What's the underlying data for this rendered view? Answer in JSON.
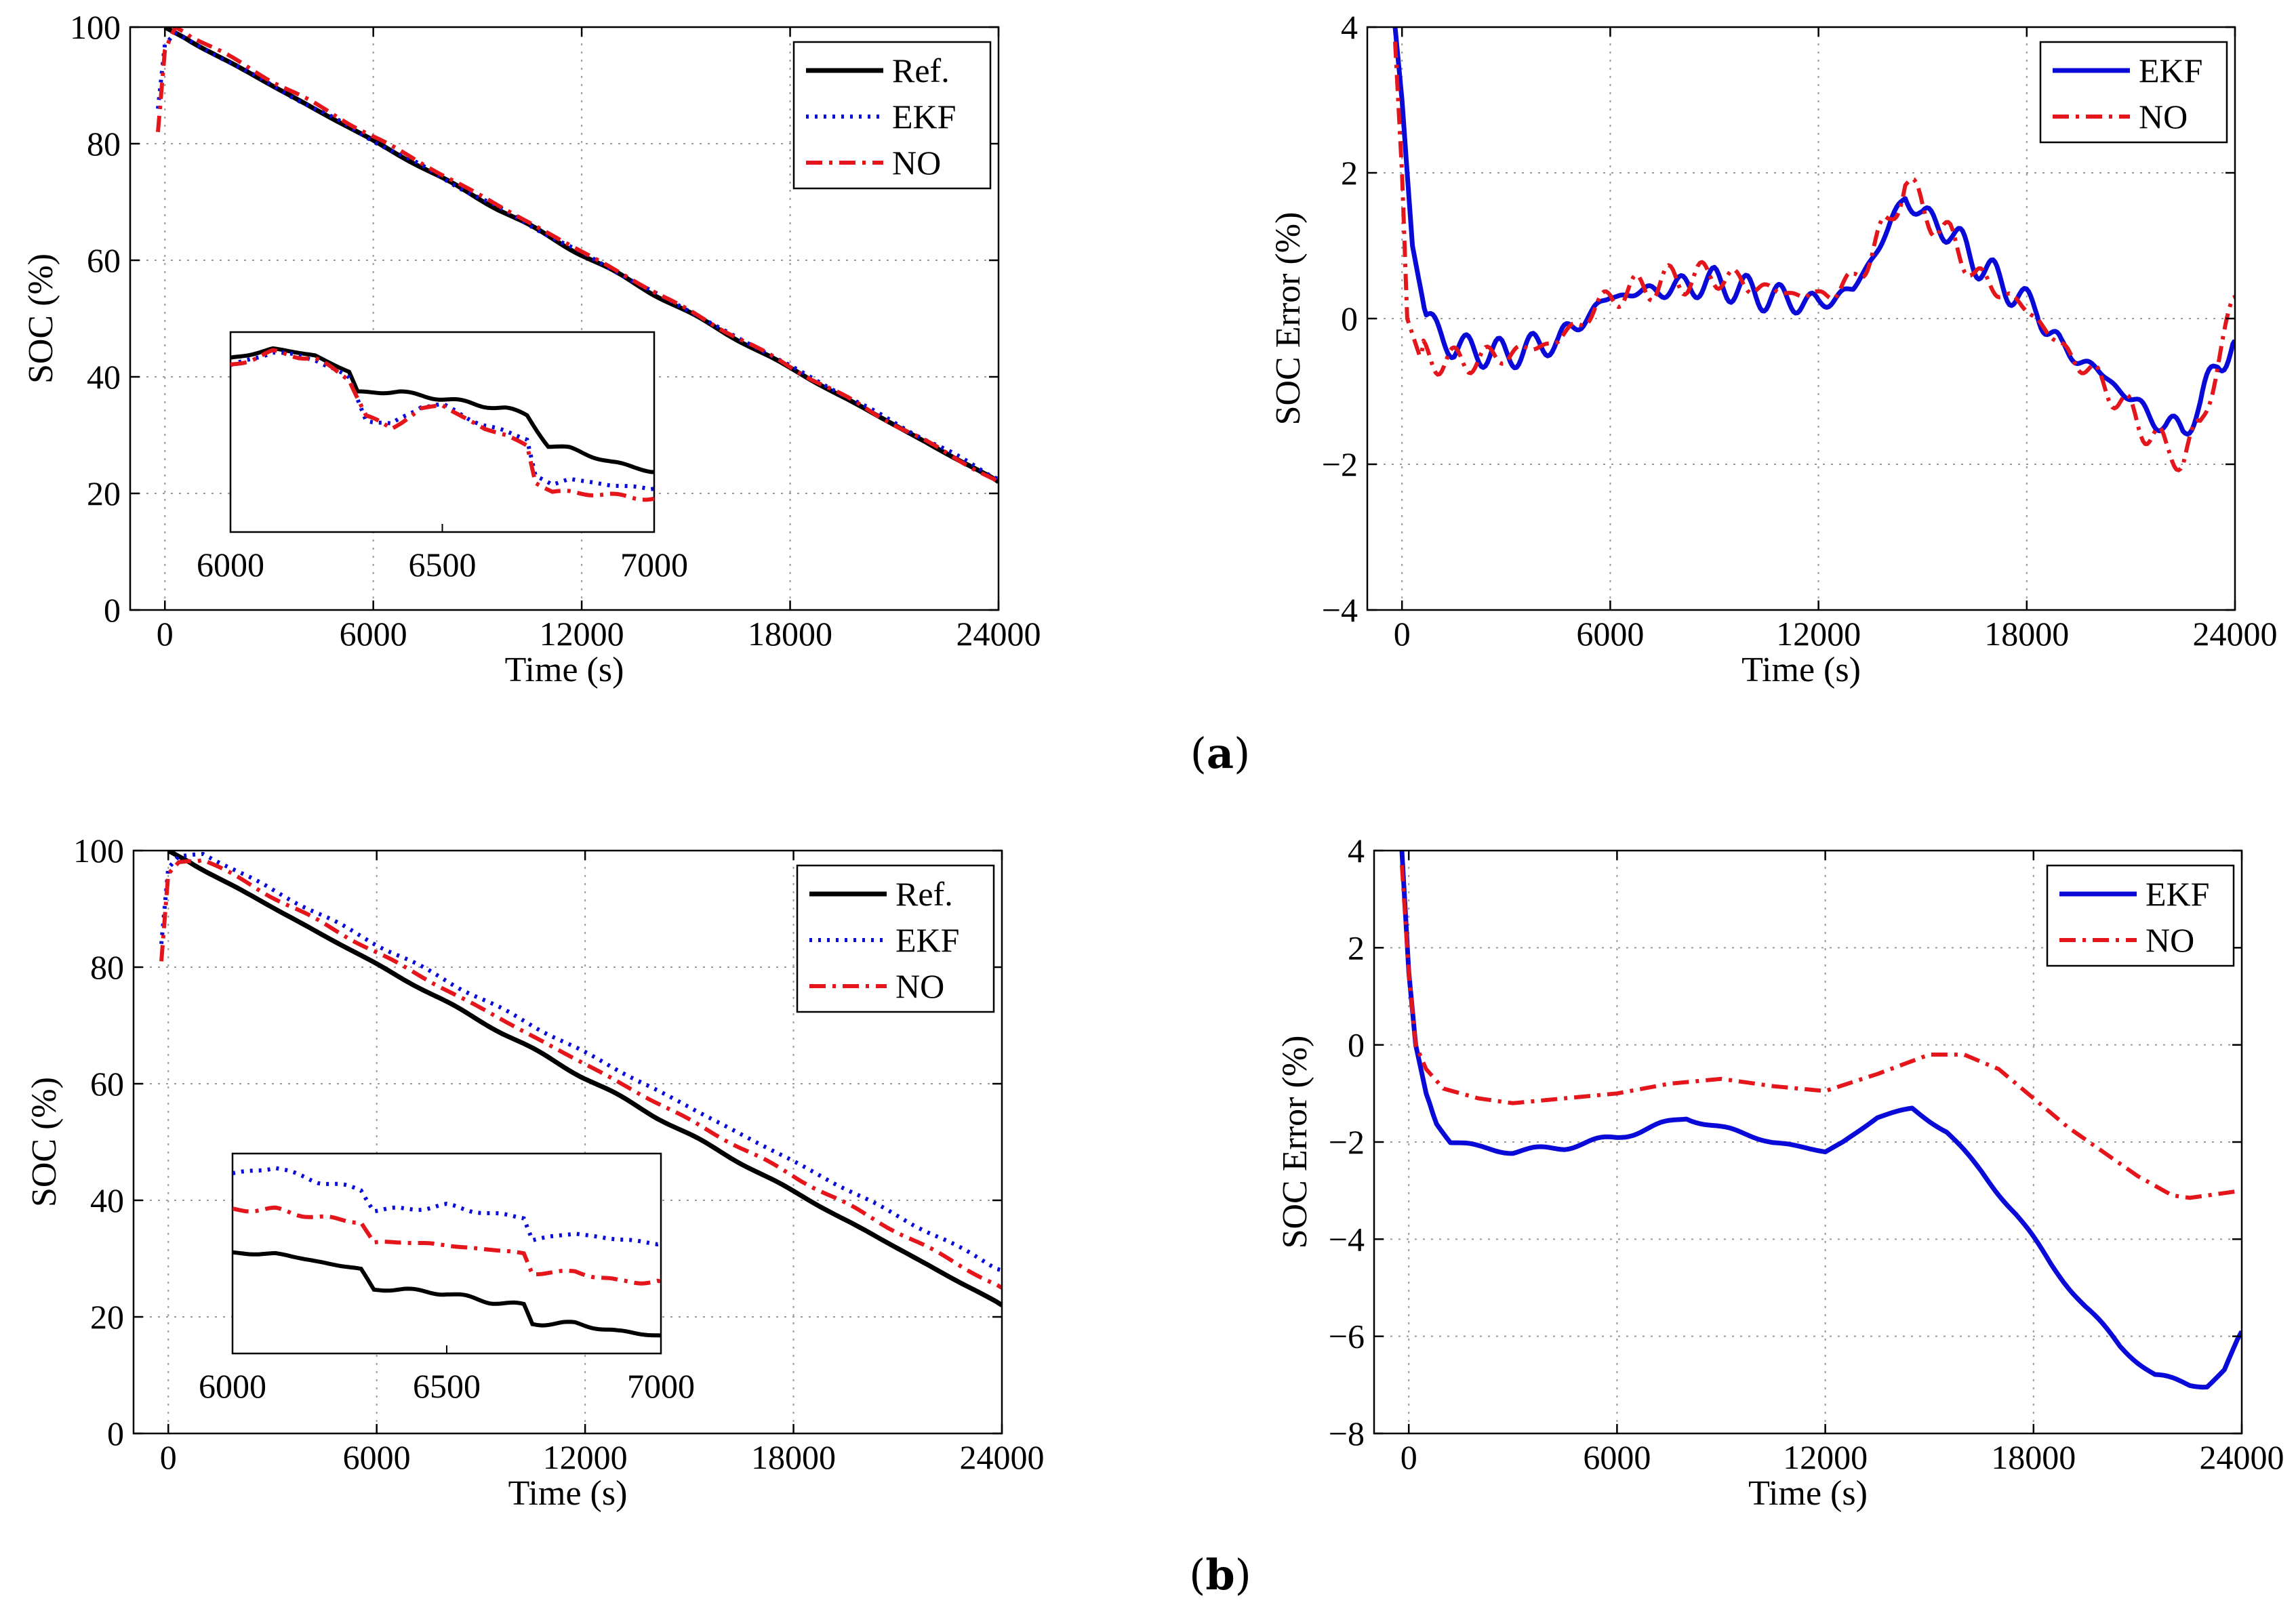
{
  "figure": {
    "panel_labels": [
      {
        "text_open": "(",
        "text_bold": "a",
        "text_close": ")"
      },
      {
        "text_open": "(",
        "text_bold": "b",
        "text_close": ")"
      }
    ]
  },
  "colors": {
    "ref": "#000000",
    "ekf": "#0a0ad8",
    "no": "#e4151b"
  },
  "chart_data": [
    {
      "id": "a-soc",
      "type": "line",
      "xlabel": "Time (s)",
      "ylabel": "SOC (%)",
      "xlim": [
        -1000,
        24000
      ],
      "ylim": [
        0,
        100
      ],
      "xticks": [
        0,
        6000,
        12000,
        18000,
        24000
      ],
      "yticks": [
        0,
        20,
        40,
        60,
        80,
        100
      ],
      "grid": true,
      "legend": {
        "position": "top-right",
        "entries": [
          "Ref.",
          "EKF",
          "NO"
        ]
      },
      "series": [
        {
          "name": "Ref.",
          "style": "solid",
          "color": "#000000",
          "x": [
            0,
            24000
          ],
          "y": [
            100,
            22
          ]
        },
        {
          "name": "EKF",
          "style": "dotted",
          "color": "#0a0ad8",
          "x": [
            -200,
            0,
            300,
            24000
          ],
          "y": [
            86,
            97,
            99,
            22.5
          ]
        },
        {
          "name": "NO",
          "style": "dashdot",
          "color": "#e4151b",
          "x": [
            -200,
            0,
            300,
            24000
          ],
          "y": [
            82,
            96,
            100,
            22
          ]
        }
      ],
      "inset": {
        "xticks": [
          6000,
          6500,
          7000
        ],
        "xlim": [
          6000,
          7000
        ],
        "ylim": [
          80,
          83
        ],
        "series": [
          {
            "name": "Ref.",
            "x": [
              6000,
              6100,
              6200,
              6280,
              6300,
              6400,
              6500,
              6600,
              6650,
              6700,
              6750,
              6800,
              6900,
              7000
            ],
            "y": [
              82.6,
              82.75,
              82.65,
              82.4,
              82.1,
              82.1,
              82.0,
              81.9,
              81.85,
              81.75,
              81.3,
              81.25,
              81.05,
              80.9
            ]
          },
          {
            "name": "EKF",
            "x": [
              6000,
              6100,
              6200,
              6280,
              6320,
              6380,
              6450,
              6500,
              6600,
              6650,
              6700,
              6720,
              6760,
              6800,
              6900,
              7000
            ],
            "y": [
              82.5,
              82.7,
              82.6,
              82.3,
              81.7,
              81.6,
              81.9,
              81.9,
              81.6,
              81.5,
              81.4,
              80.85,
              80.7,
              80.8,
              80.7,
              80.65
            ]
          },
          {
            "name": "NO",
            "x": [
              6000,
              6100,
              6200,
              6280,
              6320,
              6380,
              6450,
              6500,
              6600,
              6650,
              6700,
              6720,
              6760,
              6800,
              6900,
              7000
            ],
            "y": [
              82.5,
              82.7,
              82.6,
              82.3,
              81.75,
              81.55,
              81.85,
              81.9,
              81.55,
              81.45,
              81.3,
              80.75,
              80.6,
              80.6,
              80.55,
              80.5
            ]
          }
        ]
      }
    },
    {
      "id": "a-err",
      "type": "line",
      "xlabel": "Time (s)",
      "ylabel": "SOC Error (%)",
      "xlim": [
        -1000,
        24000
      ],
      "ylim": [
        -4,
        4
      ],
      "xticks": [
        0,
        6000,
        12000,
        18000,
        24000
      ],
      "yticks": [
        -4,
        -2,
        0,
        2,
        4
      ],
      "grid": true,
      "legend": {
        "position": "top-right",
        "entries": [
          "EKF",
          "NO"
        ]
      },
      "series": [
        {
          "name": "EKF",
          "style": "solid",
          "color": "#0a0ad8",
          "x": [
            -200,
            0,
            300,
            700,
            1500,
            3000,
            4500,
            6000,
            7500,
            9000,
            10500,
            12000,
            13000,
            14000,
            14500,
            15000,
            15800,
            16500,
            17500,
            18300,
            19000,
            20000,
            21000,
            22000,
            22500,
            23000,
            23500,
            24000
          ],
          "y": [
            4.0,
            3.0,
            1.0,
            0.0,
            -0.4,
            -0.5,
            -0.3,
            0.3,
            0.4,
            0.5,
            0.3,
            0.2,
            0.4,
            1.2,
            1.7,
            1.4,
            1.2,
            0.8,
            0.4,
            0.1,
            -0.4,
            -0.7,
            -1.1,
            -1.5,
            -1.5,
            -1.2,
            -0.6,
            -0.3
          ]
        },
        {
          "name": "NO",
          "style": "dashdot",
          "color": "#e4151b",
          "x": [
            -200,
            0,
            150,
            500,
            1500,
            3000,
            4500,
            6000,
            7500,
            9000,
            10500,
            12000,
            13000,
            14000,
            14500,
            15000,
            15800,
            16500,
            17500,
            18300,
            19000,
            20000,
            21000,
            22000,
            22500,
            23000,
            23500,
            24000
          ],
          "y": [
            3.8,
            2.0,
            0.0,
            -0.5,
            -0.6,
            -0.5,
            -0.3,
            0.3,
            0.5,
            0.6,
            0.4,
            0.3,
            0.5,
            1.3,
            1.9,
            1.5,
            1.1,
            0.6,
            0.3,
            0.0,
            -0.4,
            -0.8,
            -1.3,
            -1.8,
            -1.9,
            -1.5,
            -0.6,
            0.3
          ]
        }
      ]
    },
    {
      "id": "b-soc",
      "type": "line",
      "xlabel": "Time (s)",
      "ylabel": "SOC (%)",
      "xlim": [
        -1000,
        24000
      ],
      "ylim": [
        0,
        100
      ],
      "xticks": [
        0,
        6000,
        12000,
        18000,
        24000
      ],
      "yticks": [
        0,
        20,
        40,
        60,
        80,
        100
      ],
      "grid": true,
      "legend": {
        "position": "top-right",
        "entries": [
          "Ref.",
          "EKF",
          "NO"
        ]
      },
      "series": [
        {
          "name": "Ref.",
          "style": "solid",
          "color": "#000000",
          "x": [
            0,
            24000
          ],
          "y": [
            100,
            22
          ]
        },
        {
          "name": "EKF",
          "style": "dotted",
          "color": "#0a0ad8",
          "x": [
            -200,
            0,
            300,
            1000,
            24000
          ],
          "y": [
            84,
            97,
            99,
            99.5,
            28
          ]
        },
        {
          "name": "NO",
          "style": "dashdot",
          "color": "#e4151b",
          "x": [
            -200,
            0,
            300,
            1000,
            24000
          ],
          "y": [
            81,
            96,
            98,
            98.5,
            25
          ]
        }
      ],
      "inset": {
        "xticks": [
          6000,
          6500,
          7000
        ],
        "xlim": [
          6000,
          7000
        ],
        "ylim": [
          79.5,
          84.5
        ],
        "series": [
          {
            "name": "Ref.",
            "x": [
              6000,
              6100,
              6200,
              6300,
              6330,
              6400,
              6500,
              6600,
              6680,
              6700,
              6800,
              6900,
              7000
            ],
            "y": [
              82.0,
              82.0,
              81.8,
              81.6,
              81.1,
              81.1,
              81.0,
              80.8,
              80.7,
              80.25,
              80.25,
              80.05,
              79.95
            ]
          },
          {
            "name": "EKF",
            "x": [
              6000,
              6100,
              6200,
              6300,
              6330,
              6400,
              6500,
              6600,
              6680,
              6700,
              6800,
              6900,
              7000
            ],
            "y": [
              84.0,
              84.15,
              83.8,
              83.6,
              83.1,
              83.1,
              83.2,
              83.0,
              82.9,
              82.35,
              82.5,
              82.35,
              82.25
            ]
          },
          {
            "name": "NO",
            "x": [
              6000,
              6100,
              6200,
              6300,
              6330,
              6400,
              6500,
              6600,
              6680,
              6700,
              6800,
              6900,
              7000
            ],
            "y": [
              83.1,
              83.1,
              82.9,
              82.8,
              82.25,
              82.3,
              82.2,
              82.1,
              82.0,
              81.5,
              81.55,
              81.3,
              81.3
            ]
          }
        ]
      }
    },
    {
      "id": "b-err",
      "type": "line",
      "xlabel": "Time (s)",
      "ylabel": "SOC Error (%)",
      "xlim": [
        -1000,
        24000
      ],
      "ylim": [
        -8,
        4
      ],
      "xticks": [
        0,
        6000,
        12000,
        18000,
        24000
      ],
      "yticks": [
        -8,
        -6,
        -4,
        -2,
        0,
        2,
        4
      ],
      "grid": true,
      "legend": {
        "position": "top-right",
        "entries": [
          "EKF",
          "NO"
        ]
      },
      "series": [
        {
          "name": "EKF",
          "style": "solid",
          "color": "#0a0ad8",
          "x": [
            -200,
            0,
            200,
            500,
            800,
            1200,
            2000,
            3000,
            4500,
            6000,
            7500,
            8000,
            9000,
            10500,
            12000,
            12500,
            13500,
            14500,
            15500,
            16500,
            17500,
            18500,
            19500,
            20500,
            21500,
            22500,
            23000,
            23500,
            24000
          ],
          "y": [
            4.0,
            1.5,
            0.0,
            -1.0,
            -1.6,
            -2.0,
            -2.1,
            -2.2,
            -2.1,
            -1.9,
            -1.6,
            -1.5,
            -1.7,
            -2.0,
            -2.2,
            -2.0,
            -1.5,
            -1.3,
            -1.8,
            -2.6,
            -3.5,
            -4.5,
            -5.4,
            -6.2,
            -6.8,
            -7.0,
            -7.0,
            -6.7,
            -5.9
          ]
        },
        {
          "name": "NO",
          "style": "dashdot",
          "color": "#e4151b",
          "x": [
            -200,
            0,
            200,
            500,
            1000,
            2000,
            3000,
            4500,
            6000,
            7500,
            9000,
            10500,
            12000,
            13500,
            15000,
            16000,
            17000,
            18000,
            19000,
            20000,
            21000,
            22000,
            22500,
            23000,
            24000
          ],
          "y": [
            3.7,
            1.5,
            0.0,
            -0.5,
            -0.9,
            -1.1,
            -1.2,
            -1.1,
            -1.0,
            -0.8,
            -0.7,
            -0.85,
            -0.95,
            -0.6,
            -0.2,
            -0.2,
            -0.5,
            -1.1,
            -1.7,
            -2.2,
            -2.7,
            -3.1,
            -3.15,
            -3.1,
            -3.0
          ]
        }
      ]
    }
  ]
}
